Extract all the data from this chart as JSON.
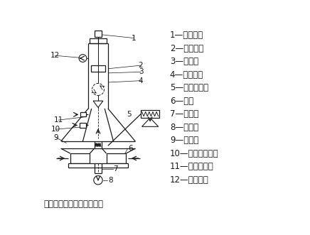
{
  "title": "对喷式气流磨的结构示意图",
  "legend_items": [
    "1—传动装置",
    "2—分级转子",
    "3—分级室",
    "4—物料入口",
    "5—螺旋加料器",
    "6—喷嘴",
    "7—混合管",
    "8—粉碎室",
    "9—上升管",
    "10—粗颗粒返回管",
    "11—二次风入口",
    "12—产品出口"
  ],
  "bg_color": "#ffffff",
  "line_color": "#1a1a1a",
  "font_size_legend": 8.5,
  "font_size_title": 8.5,
  "font_size_label": 7.5
}
